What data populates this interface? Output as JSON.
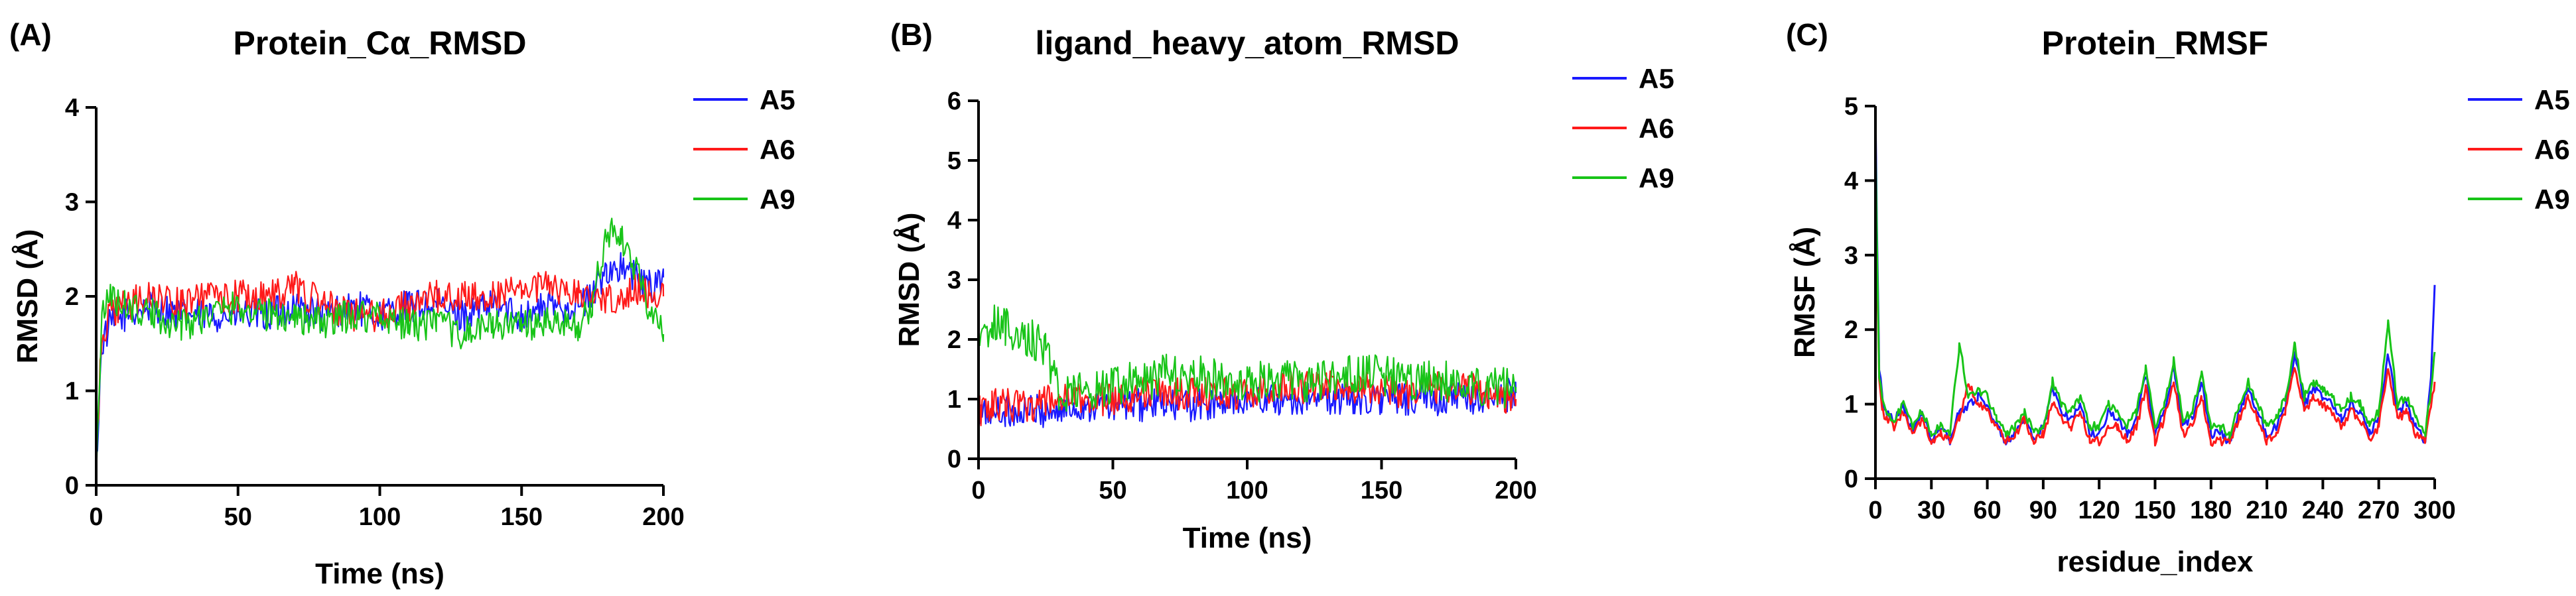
{
  "colors": {
    "A5": "#1a1aff",
    "A6": "#ff1a1a",
    "A9": "#18c418"
  },
  "chart_data": [
    {
      "type": "line",
      "panel": "(A)",
      "title": "Protein_Cα_RMSD",
      "xlabel": "Time (ns)",
      "ylabel": "RMSD (Å)",
      "xlim": [
        0,
        200
      ],
      "ylim": [
        0,
        4
      ],
      "xticks": [
        0,
        50,
        100,
        150,
        200
      ],
      "yticks": [
        0,
        1,
        2,
        3,
        4
      ],
      "legend_position": "right",
      "series": [
        {
          "name": "A5",
          "x": [
            0,
            2,
            5,
            10,
            20,
            30,
            40,
            50,
            60,
            70,
            80,
            90,
            100,
            110,
            120,
            130,
            140,
            150,
            160,
            170,
            175,
            180,
            185,
            190,
            195,
            200
          ],
          "y": [
            0.2,
            1.5,
            1.7,
            1.8,
            1.9,
            1.8,
            1.8,
            1.8,
            1.8,
            1.9,
            1.8,
            1.9,
            1.8,
            1.9,
            1.9,
            1.8,
            1.9,
            1.8,
            1.9,
            1.9,
            2.0,
            2.3,
            2.3,
            2.2,
            2.1,
            2.2
          ]
        },
        {
          "name": "A6",
          "x": [
            0,
            2,
            5,
            10,
            20,
            30,
            40,
            50,
            60,
            70,
            80,
            90,
            100,
            110,
            120,
            130,
            140,
            150,
            160,
            170,
            175,
            180,
            185,
            190,
            195,
            200
          ],
          "y": [
            0.2,
            1.6,
            1.8,
            1.9,
            2.0,
            1.9,
            2.0,
            2.0,
            2.0,
            2.1,
            1.9,
            1.8,
            1.8,
            1.9,
            2.0,
            2.0,
            2.0,
            2.1,
            2.1,
            2.0,
            2.0,
            2.0,
            2.0,
            2.1,
            2.0,
            2.0
          ]
        },
        {
          "name": "A9",
          "x": [
            0,
            2,
            5,
            10,
            20,
            30,
            40,
            50,
            60,
            70,
            80,
            90,
            100,
            110,
            120,
            130,
            140,
            150,
            160,
            170,
            175,
            180,
            185,
            190,
            195,
            200
          ],
          "y": [
            0.2,
            1.8,
            2.0,
            1.9,
            1.8,
            1.7,
            1.8,
            1.9,
            1.8,
            1.8,
            1.7,
            1.8,
            1.8,
            1.7,
            1.7,
            1.6,
            1.7,
            1.7,
            1.7,
            1.7,
            1.9,
            2.7,
            2.6,
            2.3,
            1.9,
            1.6
          ]
        }
      ]
    },
    {
      "type": "line",
      "panel": "(B)",
      "title": "ligand_heavy_atom_RMSD",
      "xlabel": "Time (ns)",
      "ylabel": "RMSD (Å)",
      "xlim": [
        0,
        200
      ],
      "ylim": [
        0,
        6
      ],
      "xticks": [
        0,
        50,
        100,
        150,
        200
      ],
      "yticks": [
        0,
        1,
        2,
        3,
        4,
        5,
        6
      ],
      "legend_position": "right",
      "series": [
        {
          "name": "A5",
          "x": [
            0,
            5,
            10,
            20,
            30,
            40,
            50,
            60,
            70,
            80,
            90,
            100,
            110,
            120,
            130,
            140,
            150,
            160,
            170,
            180,
            190,
            200
          ],
          "y": [
            0.7,
            0.8,
            0.8,
            0.8,
            0.8,
            0.9,
            0.9,
            0.9,
            0.9,
            0.9,
            0.9,
            1.0,
            1.0,
            1.0,
            1.0,
            1.0,
            1.0,
            1.0,
            1.0,
            1.0,
            1.0,
            1.1
          ]
        },
        {
          "name": "A6",
          "x": [
            0,
            5,
            10,
            20,
            30,
            40,
            50,
            60,
            70,
            80,
            90,
            100,
            110,
            120,
            130,
            140,
            150,
            160,
            170,
            180,
            190,
            200
          ],
          "y": [
            0.8,
            0.9,
            0.9,
            0.9,
            1.0,
            1.0,
            1.0,
            1.1,
            1.1,
            1.1,
            1.1,
            1.1,
            1.2,
            1.2,
            1.2,
            1.2,
            1.2,
            1.1,
            1.2,
            1.2,
            1.1,
            1.0
          ]
        },
        {
          "name": "A9",
          "x": [
            0,
            5,
            10,
            20,
            25,
            30,
            40,
            50,
            60,
            70,
            80,
            90,
            100,
            110,
            120,
            130,
            140,
            150,
            160,
            170,
            180,
            190,
            200
          ],
          "y": [
            1.8,
            2.3,
            2.2,
            2.0,
            1.9,
            1.1,
            1.1,
            1.2,
            1.3,
            1.4,
            1.4,
            1.3,
            1.3,
            1.3,
            1.3,
            1.3,
            1.4,
            1.4,
            1.3,
            1.3,
            1.3,
            1.2,
            1.2
          ]
        }
      ]
    },
    {
      "type": "line",
      "panel": "(C)",
      "title": "Protein_RMSF",
      "xlabel": "residue_index",
      "ylabel": "RMSF (Å)",
      "xlim": [
        0,
        300
      ],
      "ylim": [
        0,
        5
      ],
      "xticks": [
        0,
        30,
        60,
        90,
        120,
        150,
        180,
        210,
        240,
        270,
        300
      ],
      "yticks": [
        0,
        1,
        2,
        3,
        4,
        5
      ],
      "legend_position": "right",
      "series": [
        {
          "name": "A5",
          "x": [
            0,
            1,
            2,
            4,
            6,
            10,
            15,
            20,
            25,
            30,
            35,
            40,
            45,
            50,
            55,
            60,
            65,
            70,
            75,
            80,
            85,
            90,
            95,
            100,
            105,
            110,
            115,
            120,
            125,
            130,
            135,
            140,
            145,
            150,
            155,
            160,
            165,
            170,
            175,
            180,
            185,
            190,
            195,
            200,
            205,
            210,
            215,
            220,
            225,
            230,
            235,
            240,
            245,
            250,
            255,
            260,
            265,
            270,
            275,
            280,
            285,
            290,
            295,
            298,
            300
          ],
          "y": [
            5.0,
            3.0,
            1.5,
            1.0,
            0.9,
            0.8,
            1.0,
            0.6,
            0.9,
            0.5,
            0.7,
            0.5,
            0.9,
            1.0,
            1.1,
            1.0,
            0.7,
            0.5,
            0.6,
            0.8,
            0.5,
            0.7,
            1.2,
            0.9,
            0.8,
            1.0,
            0.6,
            0.6,
            0.9,
            0.8,
            0.6,
            0.8,
            1.4,
            0.6,
            0.9,
            1.5,
            0.7,
            0.8,
            1.3,
            0.6,
            0.6,
            0.5,
            0.9,
            1.2,
            0.9,
            0.6,
            0.7,
            1.0,
            1.7,
            1.0,
            1.2,
            1.1,
            1.0,
            0.8,
            1.0,
            0.9,
            0.6,
            0.8,
            1.7,
            0.9,
            1.0,
            0.7,
            0.5,
            1.4,
            2.6
          ]
        },
        {
          "name": "A6",
          "x": [
            0,
            1,
            2,
            4,
            6,
            10,
            15,
            20,
            25,
            30,
            35,
            40,
            45,
            50,
            55,
            60,
            65,
            70,
            75,
            80,
            85,
            90,
            95,
            100,
            105,
            110,
            115,
            120,
            125,
            130,
            135,
            140,
            145,
            150,
            155,
            160,
            165,
            170,
            175,
            180,
            185,
            190,
            195,
            200,
            205,
            210,
            215,
            220,
            225,
            230,
            235,
            240,
            245,
            250,
            255,
            260,
            265,
            270,
            275,
            280,
            285,
            290,
            295,
            298,
            300
          ],
          "y": [
            4.2,
            2.6,
            1.3,
            0.9,
            0.8,
            0.7,
            0.9,
            0.6,
            0.8,
            0.5,
            0.6,
            0.5,
            0.8,
            1.3,
            1.0,
            0.9,
            0.7,
            0.5,
            0.6,
            0.8,
            0.5,
            0.6,
            1.0,
            0.8,
            0.7,
            0.9,
            0.5,
            0.5,
            0.7,
            0.7,
            0.5,
            0.7,
            1.2,
            0.5,
            0.8,
            1.3,
            0.6,
            0.7,
            1.1,
            0.5,
            0.5,
            0.5,
            0.8,
            1.1,
            0.8,
            0.5,
            0.6,
            0.9,
            1.5,
            0.9,
            1.1,
            1.0,
            0.9,
            0.7,
            0.9,
            0.8,
            0.5,
            0.7,
            1.5,
            0.8,
            0.9,
            0.6,
            0.5,
            1.0,
            1.3
          ]
        },
        {
          "name": "A9",
          "x": [
            0,
            1,
            2,
            4,
            6,
            10,
            15,
            20,
            25,
            30,
            35,
            40,
            45,
            50,
            55,
            60,
            65,
            70,
            75,
            80,
            85,
            90,
            95,
            100,
            105,
            110,
            115,
            120,
            125,
            130,
            135,
            140,
            145,
            150,
            155,
            160,
            165,
            170,
            175,
            180,
            185,
            190,
            195,
            200,
            205,
            210,
            215,
            220,
            225,
            230,
            235,
            240,
            245,
            250,
            255,
            260,
            265,
            270,
            275,
            280,
            285,
            290,
            295,
            298,
            300
          ],
          "y": [
            4.6,
            2.8,
            1.4,
            1.0,
            0.9,
            0.8,
            1.0,
            0.7,
            0.9,
            0.6,
            0.7,
            0.6,
            1.8,
            1.1,
            1.2,
            1.1,
            0.8,
            0.6,
            0.7,
            0.9,
            0.6,
            0.7,
            1.3,
            1.0,
            0.9,
            1.1,
            0.7,
            0.7,
            1.0,
            0.9,
            0.7,
            0.9,
            1.5,
            0.7,
            1.0,
            1.6,
            0.8,
            0.9,
            1.4,
            0.7,
            0.7,
            0.6,
            1.0,
            1.3,
            1.0,
            0.7,
            0.8,
            1.1,
            1.8,
            1.1,
            1.3,
            1.2,
            1.1,
            0.9,
            1.1,
            1.0,
            0.7,
            0.9,
            2.1,
            1.0,
            1.1,
            0.8,
            0.6,
            1.2,
            1.7
          ]
        }
      ]
    }
  ]
}
